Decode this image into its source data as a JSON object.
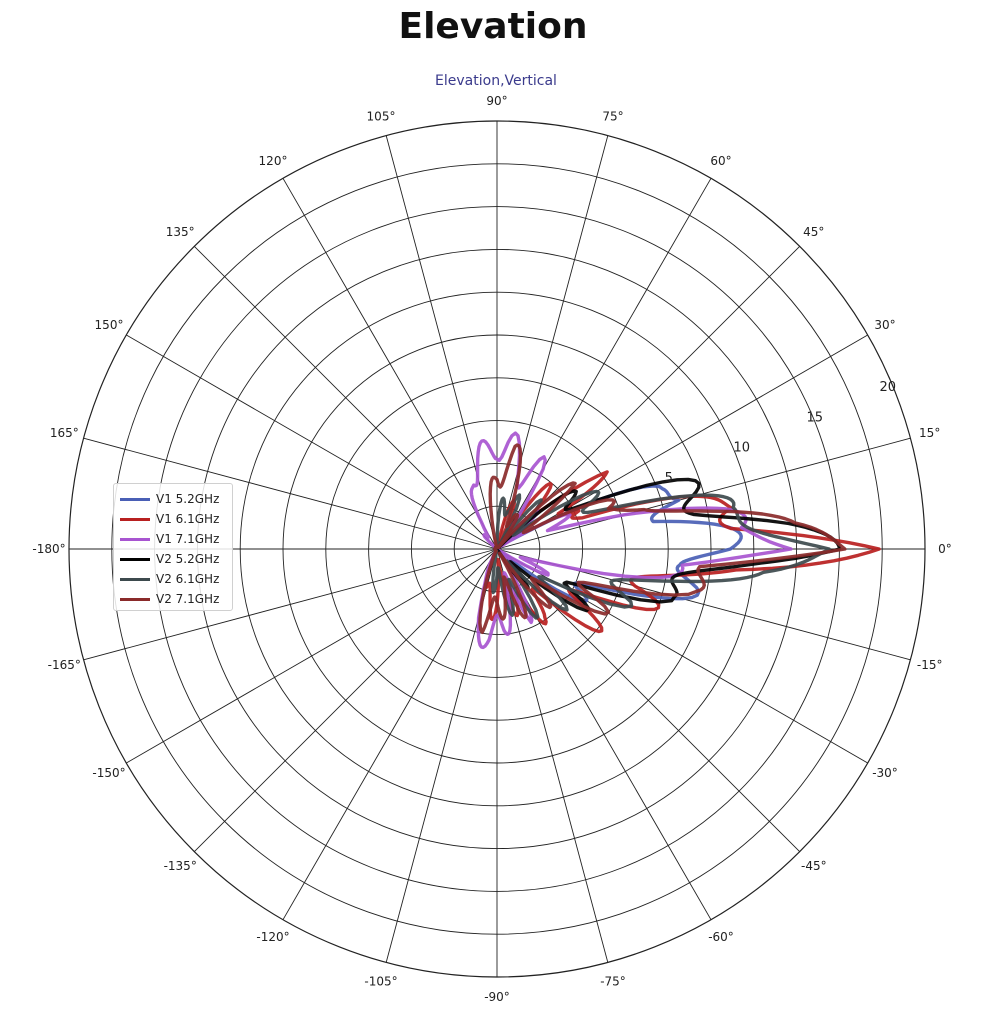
{
  "page": {
    "title": "Elevation"
  },
  "chart_data": {
    "type": "polar-line",
    "title": "Elevation,Vertical",
    "angle_ticks": [
      0,
      15,
      30,
      45,
      60,
      75,
      90,
      105,
      120,
      135,
      150,
      165,
      -180,
      -165,
      -150,
      -135,
      -120,
      -105,
      -90,
      -75,
      -60,
      -45,
      -30,
      -15
    ],
    "angle_tick_labels": [
      "0°",
      "15°",
      "30°",
      "45°",
      "60°",
      "75°",
      "90°",
      "105°",
      "120°",
      "135°",
      "150°",
      "165°",
      "-180°",
      "-165°",
      "-150°",
      "-135°",
      "-120°",
      "-105°",
      "-90°",
      "-75°",
      "-60°",
      "-45°",
      "-30°",
      "-15°"
    ],
    "radial_ticks": [
      5,
      10,
      15,
      20
    ],
    "radial_tick_labels": [
      "5",
      "10",
      "15",
      "20"
    ],
    "grid": true,
    "legend_position": "left",
    "series": [
      {
        "name": "V1 5.2GHz",
        "color": "#4a5fb5",
        "points": [
          [
            0,
            8
          ],
          [
            5,
            6
          ],
          [
            10,
            4
          ],
          [
            15,
            7
          ],
          [
            20,
            3
          ],
          [
            30,
            -3
          ],
          [
            45,
            -8
          ],
          [
            60,
            -12
          ],
          [
            75,
            -14
          ],
          [
            90,
            -16
          ],
          [
            120,
            -18
          ],
          [
            150,
            -20
          ],
          [
            180,
            -19
          ],
          [
            -150,
            -20
          ],
          [
            -120,
            -18
          ],
          [
            -90,
            -15
          ],
          [
            -75,
            -12
          ],
          [
            -60,
            -10
          ],
          [
            -45,
            -6
          ],
          [
            -30,
            -2
          ],
          [
            -20,
            2
          ],
          [
            -10,
            5
          ],
          [
            -5,
            7
          ],
          [
            0,
            8
          ]
        ]
      },
      {
        "name": "V1 6.1GHz",
        "color": "#b82020",
        "points": [
          [
            0,
            16
          ],
          [
            5,
            10
          ],
          [
            10,
            9
          ],
          [
            15,
            4
          ],
          [
            20,
            -1
          ],
          [
            25,
            1
          ],
          [
            30,
            -3
          ],
          [
            35,
            0
          ],
          [
            45,
            -2
          ],
          [
            55,
            -4
          ],
          [
            65,
            -6
          ],
          [
            75,
            -4
          ],
          [
            85,
            -8
          ],
          [
            90,
            -10
          ],
          [
            100,
            -12
          ],
          [
            110,
            -9
          ],
          [
            125,
            -10
          ],
          [
            140,
            -16
          ],
          [
            160,
            -14
          ],
          [
            180,
            -15
          ],
          [
            -160,
            -16
          ],
          [
            -140,
            -14
          ],
          [
            -120,
            -9
          ],
          [
            -105,
            -4
          ],
          [
            -95,
            -3
          ],
          [
            -85,
            -5
          ],
          [
            -75,
            -4
          ],
          [
            -65,
            -2
          ],
          [
            -55,
            -3
          ],
          [
            -45,
            -1
          ],
          [
            -35,
            0
          ],
          [
            -25,
            1
          ],
          [
            -15,
            3
          ],
          [
            -10,
            5
          ],
          [
            -5,
            7
          ],
          [
            0,
            16
          ]
        ]
      },
      {
        "name": "V1 7.1GHz",
        "color": "#a855d0",
        "points": [
          [
            0,
            14
          ],
          [
            5,
            8
          ],
          [
            10,
            6
          ],
          [
            15,
            3
          ],
          [
            20,
            -2
          ],
          [
            30,
            -5
          ],
          [
            40,
            -4
          ],
          [
            50,
            -7
          ],
          [
            60,
            -2
          ],
          [
            75,
            -1
          ],
          [
            90,
            0
          ],
          [
            100,
            -1
          ],
          [
            110,
            -2
          ],
          [
            120,
            -5
          ],
          [
            135,
            -6
          ],
          [
            150,
            -9
          ],
          [
            165,
            -10
          ],
          [
            180,
            -15
          ],
          [
            -160,
            -16
          ],
          [
            -135,
            -14
          ],
          [
            -120,
            -8
          ],
          [
            -105,
            -2
          ],
          [
            -95,
            -1
          ],
          [
            -85,
            -2
          ],
          [
            -75,
            -4
          ],
          [
            -65,
            -3
          ],
          [
            -55,
            -6
          ],
          [
            -45,
            -7
          ],
          [
            -30,
            -6
          ],
          [
            -15,
            -2
          ],
          [
            -5,
            5
          ],
          [
            0,
            14
          ]
        ]
      },
      {
        "name": "V2 5.2GHz",
        "color": "#000000",
        "points": [
          [
            0,
            13
          ],
          [
            5,
            11
          ],
          [
            10,
            8
          ],
          [
            15,
            6
          ],
          [
            25,
            2
          ],
          [
            35,
            -2
          ],
          [
            45,
            -5
          ],
          [
            60,
            -8
          ],
          [
            75,
            -10
          ],
          [
            90,
            -12
          ],
          [
            110,
            -16
          ],
          [
            140,
            -19
          ],
          [
            180,
            -17
          ],
          [
            -140,
            -19
          ],
          [
            -110,
            -16
          ],
          [
            -90,
            -13
          ],
          [
            -75,
            -9
          ],
          [
            -60,
            -7
          ],
          [
            -45,
            -4
          ],
          [
            -30,
            -1
          ],
          [
            -15,
            3
          ],
          [
            -8,
            7
          ],
          [
            -3,
            10
          ],
          [
            0,
            13
          ]
        ]
      },
      {
        "name": "V2 6.1GHz",
        "color": "#3d4a4d",
        "points": [
          [
            0,
            15
          ],
          [
            5,
            11
          ],
          [
            10,
            7
          ],
          [
            15,
            5
          ],
          [
            25,
            0
          ],
          [
            35,
            -3
          ],
          [
            45,
            -4
          ],
          [
            60,
            -6
          ],
          [
            75,
            -3
          ],
          [
            85,
            -5
          ],
          [
            95,
            -7
          ],
          [
            110,
            -9
          ],
          [
            130,
            -14
          ],
          [
            160,
            -17
          ],
          [
            180,
            -14
          ],
          [
            -160,
            -17
          ],
          [
            -130,
            -15
          ],
          [
            -110,
            -8
          ],
          [
            -95,
            -5
          ],
          [
            -80,
            -4
          ],
          [
            -65,
            -3
          ],
          [
            -50,
            -4
          ],
          [
            -35,
            -2
          ],
          [
            -20,
            1
          ],
          [
            -10,
            5
          ],
          [
            -5,
            8
          ],
          [
            0,
            15
          ]
        ]
      },
      {
        "name": "V2 7.1GHz",
        "color": "#8a2a2a",
        "points": [
          [
            0,
            16
          ],
          [
            5,
            10
          ],
          [
            10,
            7
          ],
          [
            15,
            5
          ],
          [
            20,
            0
          ],
          [
            30,
            -3
          ],
          [
            40,
            -2
          ],
          [
            50,
            -5
          ],
          [
            60,
            -6
          ],
          [
            70,
            -3
          ],
          [
            80,
            -1
          ],
          [
            90,
            -2
          ],
          [
            100,
            -5
          ],
          [
            115,
            -8
          ],
          [
            130,
            -12
          ],
          [
            150,
            -13
          ],
          [
            180,
            -14
          ],
          [
            -150,
            -16
          ],
          [
            -130,
            -12
          ],
          [
            -115,
            -6
          ],
          [
            -100,
            -2
          ],
          [
            -90,
            -3
          ],
          [
            -80,
            -4
          ],
          [
            -70,
            -3
          ],
          [
            -60,
            -5
          ],
          [
            -50,
            -4
          ],
          [
            -40,
            -2
          ],
          [
            -25,
            0
          ],
          [
            -12,
            4
          ],
          [
            -5,
            8
          ],
          [
            0,
            16
          ]
        ]
      }
    ]
  }
}
